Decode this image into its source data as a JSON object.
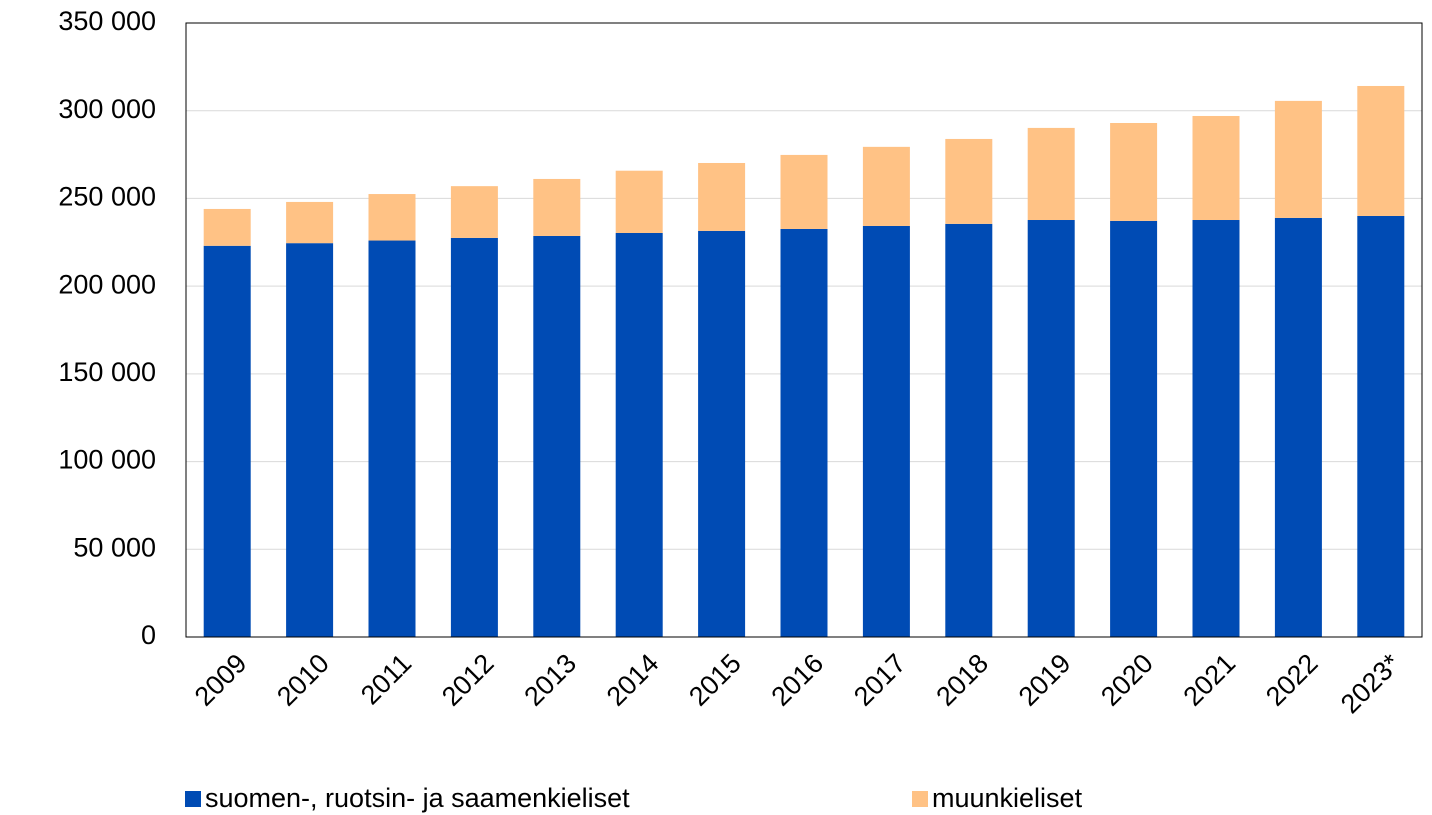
{
  "chart_data": {
    "type": "bar",
    "stacked": true,
    "categories": [
      "2009",
      "2010",
      "2011",
      "2012",
      "2013",
      "2014",
      "2015",
      "2016",
      "2017",
      "2018",
      "2019",
      "2020",
      "2021",
      "2022",
      "2023*"
    ],
    "series": [
      {
        "name": "suomen-, ruotsin- ja saamenkieliset",
        "color": "#004bb4",
        "values": [
          223000,
          224500,
          226000,
          227500,
          228600,
          230300,
          231500,
          232600,
          234300,
          235500,
          237700,
          237200,
          237700,
          238900,
          240000
        ]
      },
      {
        "name": "muunkieliset",
        "color": "#ffc285",
        "values": [
          21000,
          23500,
          26500,
          29500,
          32500,
          35500,
          38700,
          42200,
          45100,
          48400,
          52500,
          55800,
          59300,
          66700,
          74100
        ]
      }
    ],
    "ylim": [
      0,
      350000
    ],
    "yticks": [
      0,
      {
        "value": 50000,
        "label": "50 000"
      },
      {
        "value": 100000,
        "label": "100 000"
      },
      {
        "value": 150000,
        "label": "150 000"
      },
      {
        "value": 200000,
        "label": "200 000"
      },
      {
        "value": 250000,
        "label": "250 000"
      },
      {
        "value": 300000,
        "label": "300 000"
      },
      {
        "value": 350000,
        "label": "350 000"
      }
    ],
    "grid": true,
    "legend": "bottom"
  }
}
